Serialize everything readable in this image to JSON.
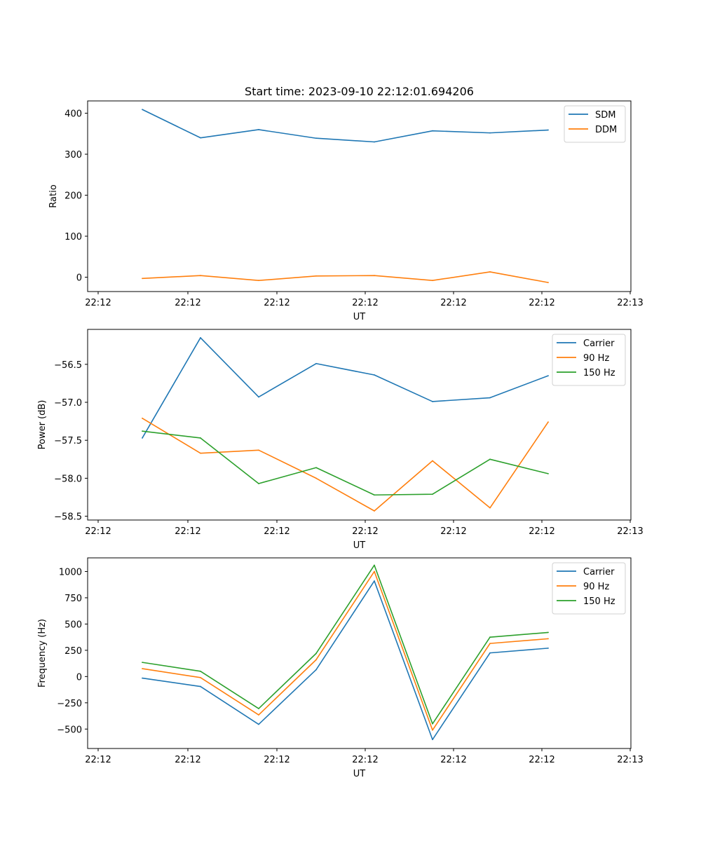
{
  "chart_data": [
    {
      "type": "line",
      "title": "Start time: 2023-09-10 22:12:01.694206",
      "xlabel": "UT",
      "ylabel": "Ratio",
      "x_tick_labels": [
        "22:12",
        "22:12",
        "22:12",
        "22:12",
        "22:12",
        "22:12",
        "22:12",
        "22:13"
      ],
      "y_ticks": [
        0,
        100,
        200,
        300,
        400
      ],
      "ylim": [
        -35,
        430
      ],
      "legend_position": "top-right",
      "series": [
        {
          "name": "SDM",
          "color": "#1f77b4",
          "values": [
            409,
            340,
            360,
            339,
            330,
            357,
            352,
            359
          ]
        },
        {
          "name": "DDM",
          "color": "#ff7f0e",
          "values": [
            -3,
            4,
            -8,
            3,
            4,
            -8,
            13,
            -13
          ]
        }
      ]
    },
    {
      "type": "line",
      "title": "",
      "xlabel": "UT",
      "ylabel": "Power (dB)",
      "x_tick_labels": [
        "22:12",
        "22:12",
        "22:12",
        "22:12",
        "22:12",
        "22:12",
        "22:12",
        "22:13"
      ],
      "y_ticks": [
        -58.5,
        -58.0,
        -57.5,
        -57.0,
        -56.5
      ],
      "y_tick_labels": [
        "−58.5",
        "−58.0",
        "−57.5",
        "−57.0",
        "−56.5"
      ],
      "ylim": [
        -58.55,
        -56.04
      ],
      "legend_position": "top-right",
      "series": [
        {
          "name": "Carrier",
          "color": "#1f77b4",
          "values": [
            -57.47,
            -56.15,
            -56.93,
            -56.49,
            -56.64,
            -56.99,
            -56.94,
            -56.65
          ]
        },
        {
          "name": "90 Hz",
          "color": "#ff7f0e",
          "values": [
            -57.21,
            -57.67,
            -57.63,
            -58.0,
            -58.43,
            -57.77,
            -58.39,
            -57.26
          ]
        },
        {
          "name": "150 Hz",
          "color": "#2ca02c",
          "values": [
            -57.38,
            -57.47,
            -58.07,
            -57.86,
            -58.22,
            -58.21,
            -57.75,
            -57.94
          ]
        }
      ]
    },
    {
      "type": "line",
      "title": "",
      "xlabel": "UT",
      "ylabel": "Frequency (Hz)",
      "x_tick_labels": [
        "22:12",
        "22:12",
        "22:12",
        "22:12",
        "22:12",
        "22:12",
        "22:12",
        "22:13"
      ],
      "y_ticks": [
        -500,
        -250,
        0,
        250,
        500,
        750,
        1000
      ],
      "y_tick_labels": [
        "−500",
        "−250",
        "0",
        "250",
        "500",
        "750",
        "1000"
      ],
      "ylim": [
        -685,
        1130
      ],
      "legend_position": "top-right",
      "series": [
        {
          "name": "Carrier",
          "color": "#1f77b4",
          "values": [
            -15,
            -95,
            -455,
            65,
            910,
            -600,
            225,
            270
          ]
        },
        {
          "name": "90 Hz",
          "color": "#ff7f0e",
          "values": [
            75,
            -10,
            -365,
            160,
            1000,
            -510,
            315,
            360
          ]
        },
        {
          "name": "150 Hz",
          "color": "#2ca02c",
          "values": [
            135,
            50,
            -305,
            220,
            1060,
            -450,
            375,
            420
          ]
        }
      ]
    }
  ]
}
